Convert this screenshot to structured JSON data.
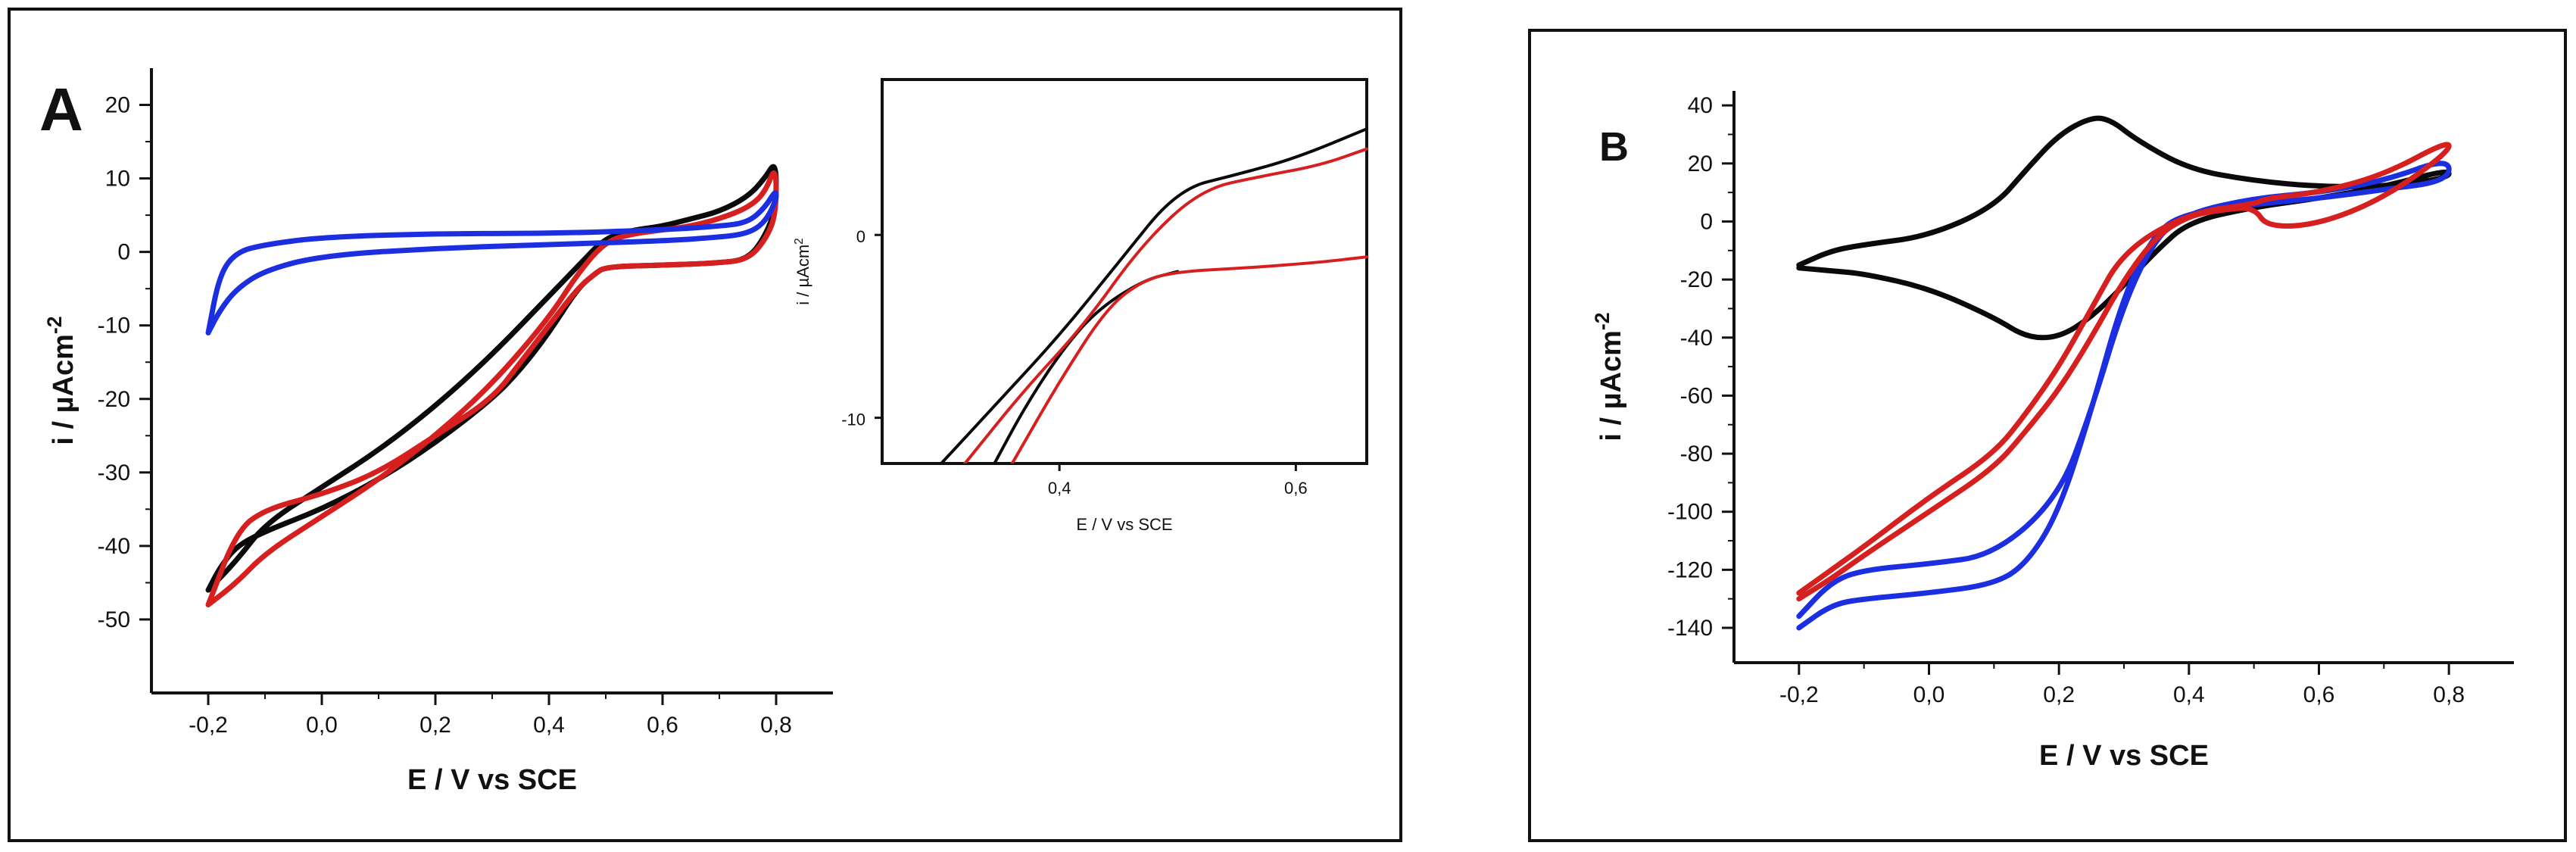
{
  "chart_data": [
    {
      "panel": "A",
      "type": "line",
      "xlabel": "E / V vs SCE",
      "ylabel": "i / µAcm",
      "ylabel_superscript": "-2",
      "xlim": [
        -0.3,
        0.9
      ],
      "ylim": [
        -60,
        25
      ],
      "xticks": [
        -0.2,
        0.0,
        0.2,
        0.4,
        0.6,
        0.8
      ],
      "xtick_labels": [
        "-0,2",
        "0,0",
        "0,2",
        "0,4",
        "0,6",
        "0,8"
      ],
      "yticks": [
        20,
        10,
        0,
        -10,
        -20,
        -30,
        -40,
        -50
      ],
      "ytick_labels": [
        "20",
        "10",
        "0",
        "-10",
        "-20",
        "-30",
        "-40",
        "-50"
      ],
      "series": [
        {
          "color": "#0a0a0a",
          "x": [
            -0.2,
            -0.15,
            -0.1,
            0.0,
            0.1,
            0.2,
            0.3,
            0.4,
            0.45,
            0.5,
            0.55,
            0.6,
            0.65,
            0.7,
            0.75,
            0.78,
            0.8,
            0.8,
            0.78,
            0.75,
            0.7,
            0.6,
            0.5,
            0.48,
            0.45,
            0.4,
            0.35,
            0.3,
            0.2,
            0.1,
            0.0,
            -0.1,
            -0.15,
            -0.18,
            -0.2
          ],
          "values": [
            -46,
            -42,
            -37,
            -32,
            -27,
            -21,
            -14,
            -6,
            -2,
            2,
            3,
            3.5,
            4.5,
            5.5,
            7.5,
            10,
            12.5,
            6,
            2,
            -1,
            -1.5,
            -1.8,
            -2,
            -3,
            -5,
            -11,
            -16,
            -20,
            -26,
            -31,
            -35,
            -38,
            -40,
            -43,
            -46
          ]
        },
        {
          "color": "#d62020",
          "x": [
            -0.2,
            -0.15,
            -0.1,
            0.0,
            0.1,
            0.2,
            0.3,
            0.4,
            0.45,
            0.5,
            0.55,
            0.6,
            0.65,
            0.7,
            0.75,
            0.78,
            0.8,
            0.8,
            0.78,
            0.75,
            0.7,
            0.6,
            0.5,
            0.48,
            0.45,
            0.4,
            0.35,
            0.3,
            0.2,
            0.1,
            0.0,
            -0.1,
            -0.15,
            -0.2
          ],
          "values": [
            -48,
            -45,
            -41,
            -36,
            -31,
            -25,
            -18,
            -9,
            -3,
            1.5,
            2.5,
            3,
            3.5,
            4.5,
            6,
            8,
            12,
            5,
            1.5,
            -1,
            -1.5,
            -1.8,
            -2,
            -3,
            -5,
            -10,
            -15,
            -20,
            -25,
            -30,
            -33,
            -35,
            -38,
            -48
          ]
        },
        {
          "color": "#1c2fe0",
          "x": [
            -0.2,
            -0.18,
            -0.15,
            -0.1,
            0.0,
            0.2,
            0.4,
            0.6,
            0.7,
            0.75,
            0.78,
            0.8,
            0.8,
            0.78,
            0.75,
            0.7,
            0.6,
            0.4,
            0.2,
            0.0,
            -0.1,
            -0.15,
            -0.18,
            -0.2
          ],
          "values": [
            -11,
            -8,
            -5,
            -2.5,
            -0.5,
            0.5,
            1,
            1.5,
            2,
            2.5,
            4,
            7,
            8.5,
            6,
            4,
            3.5,
            3,
            2.5,
            2.5,
            2,
            1,
            0,
            -3,
            -11
          ]
        }
      ]
    },
    {
      "panel": "A-inset",
      "type": "line",
      "xlabel": "E  / V vs SCE",
      "ylabel": "i / µAcm",
      "ylabel_superscript": "2",
      "xlim": [
        0.25,
        0.66
      ],
      "ylim": [
        -12.5,
        8.5
      ],
      "xticks": [
        0.4,
        0.6
      ],
      "xtick_labels": [
        "0,4",
        "0,6"
      ],
      "yticks": [
        0,
        -10
      ],
      "ytick_labels": [
        "0",
        "-10"
      ],
      "series": [
        {
          "color": "#0a0a0a",
          "x": [
            0.3,
            0.35,
            0.4,
            0.45,
            0.5,
            0.55,
            0.6,
            0.66
          ],
          "values": [
            -12.5,
            -9,
            -5.5,
            -1.5,
            2.5,
            3.3,
            4.2,
            5.8
          ]
        },
        {
          "color": "#0a0a0a",
          "x": [
            0.345,
            0.37,
            0.4,
            0.43,
            0.47,
            0.5
          ],
          "values": [
            -12.5,
            -9.5,
            -6.5,
            -4.2,
            -2.5,
            -2
          ]
        },
        {
          "color": "#d62020",
          "x": [
            0.32,
            0.37,
            0.42,
            0.47,
            0.52,
            0.57,
            0.62,
            0.66
          ],
          "values": [
            -12.5,
            -8.5,
            -5,
            -0.5,
            2.5,
            3.2,
            3.8,
            4.7
          ]
        },
        {
          "color": "#d62020",
          "x": [
            0.36,
            0.4,
            0.44,
            0.47,
            0.5,
            0.56,
            0.62,
            0.66
          ],
          "values": [
            -12.5,
            -8,
            -4,
            -2.5,
            -2,
            -1.8,
            -1.5,
            -1.2
          ]
        }
      ]
    },
    {
      "panel": "B",
      "type": "line",
      "xlabel": "E / V vs SCE",
      "ylabel": "i / µAcm",
      "ylabel_superscript": "-2",
      "xlim": [
        -0.3,
        0.9
      ],
      "ylim": [
        -152,
        45
      ],
      "xticks": [
        -0.2,
        0.0,
        0.2,
        0.4,
        0.6,
        0.8
      ],
      "xtick_labels": [
        "-0,2",
        "0,0",
        "0,2",
        "0,4",
        "0,6",
        "0,8"
      ],
      "yticks": [
        40,
        20,
        0,
        -20,
        -40,
        -60,
        -80,
        -100,
        -120,
        -140
      ],
      "ytick_labels": [
        "40",
        "20",
        "0",
        "-20",
        "-40",
        "-60",
        "-80",
        "-100",
        "-120",
        "-140"
      ],
      "series": [
        {
          "color": "#0a0a0a",
          "x": [
            -0.2,
            -0.15,
            -0.1,
            0.0,
            0.1,
            0.15,
            0.2,
            0.25,
            0.28,
            0.32,
            0.4,
            0.5,
            0.6,
            0.7,
            0.8,
            0.8,
            0.7,
            0.6,
            0.5,
            0.4,
            0.35,
            0.3,
            0.25,
            0.2,
            0.15,
            0.1,
            0.0,
            -0.1,
            -0.15,
            -0.2
          ],
          "values": [
            -15,
            -10,
            -8,
            -5,
            5,
            18,
            30,
            36,
            35,
            28,
            18,
            14,
            12,
            12,
            15,
            18,
            12,
            8,
            5,
            0,
            -10,
            -22,
            -33,
            -40,
            -40,
            -33,
            -23,
            -18,
            -17,
            -16
          ]
        },
        {
          "color": "#1c2fe0",
          "x": [
            -0.2,
            -0.15,
            -0.1,
            0.0,
            0.1,
            0.15,
            0.2,
            0.25,
            0.3,
            0.35,
            0.4,
            0.5,
            0.6,
            0.7,
            0.8,
            0.8,
            0.7,
            0.6,
            0.5,
            0.4,
            0.35,
            0.3,
            0.25,
            0.2,
            0.1,
            0.0,
            -0.1,
            -0.15,
            -0.2
          ],
          "values": [
            -140,
            -132,
            -130,
            -128,
            -125,
            -118,
            -100,
            -65,
            -25,
            -3,
            3,
            6,
            8,
            11,
            14,
            22,
            14,
            10,
            8,
            3,
            -5,
            -28,
            -65,
            -95,
            -115,
            -118,
            -120,
            -124,
            -136
          ]
        },
        {
          "color": "#d62020",
          "x": [
            -0.2,
            -0.15,
            -0.1,
            0.0,
            0.1,
            0.15,
            0.2,
            0.25,
            0.3,
            0.35,
            0.4,
            0.45,
            0.5,
            0.52,
            0.6,
            0.7,
            0.8,
            0.8,
            0.7,
            0.6,
            0.52,
            0.5,
            0.4,
            0.3,
            0.25,
            0.2,
            0.15,
            0.1,
            0.0,
            -0.1,
            -0.15,
            -0.2
          ],
          "values": [
            -130,
            -123,
            -115,
            -100,
            -85,
            -72,
            -58,
            -40,
            -20,
            -5,
            2,
            4,
            5,
            -2,
            -1,
            8,
            24,
            28,
            16,
            10,
            8,
            6,
            3,
            -10,
            -30,
            -50,
            -66,
            -80,
            -95,
            -112,
            -120,
            -128
          ]
        }
      ]
    }
  ]
}
